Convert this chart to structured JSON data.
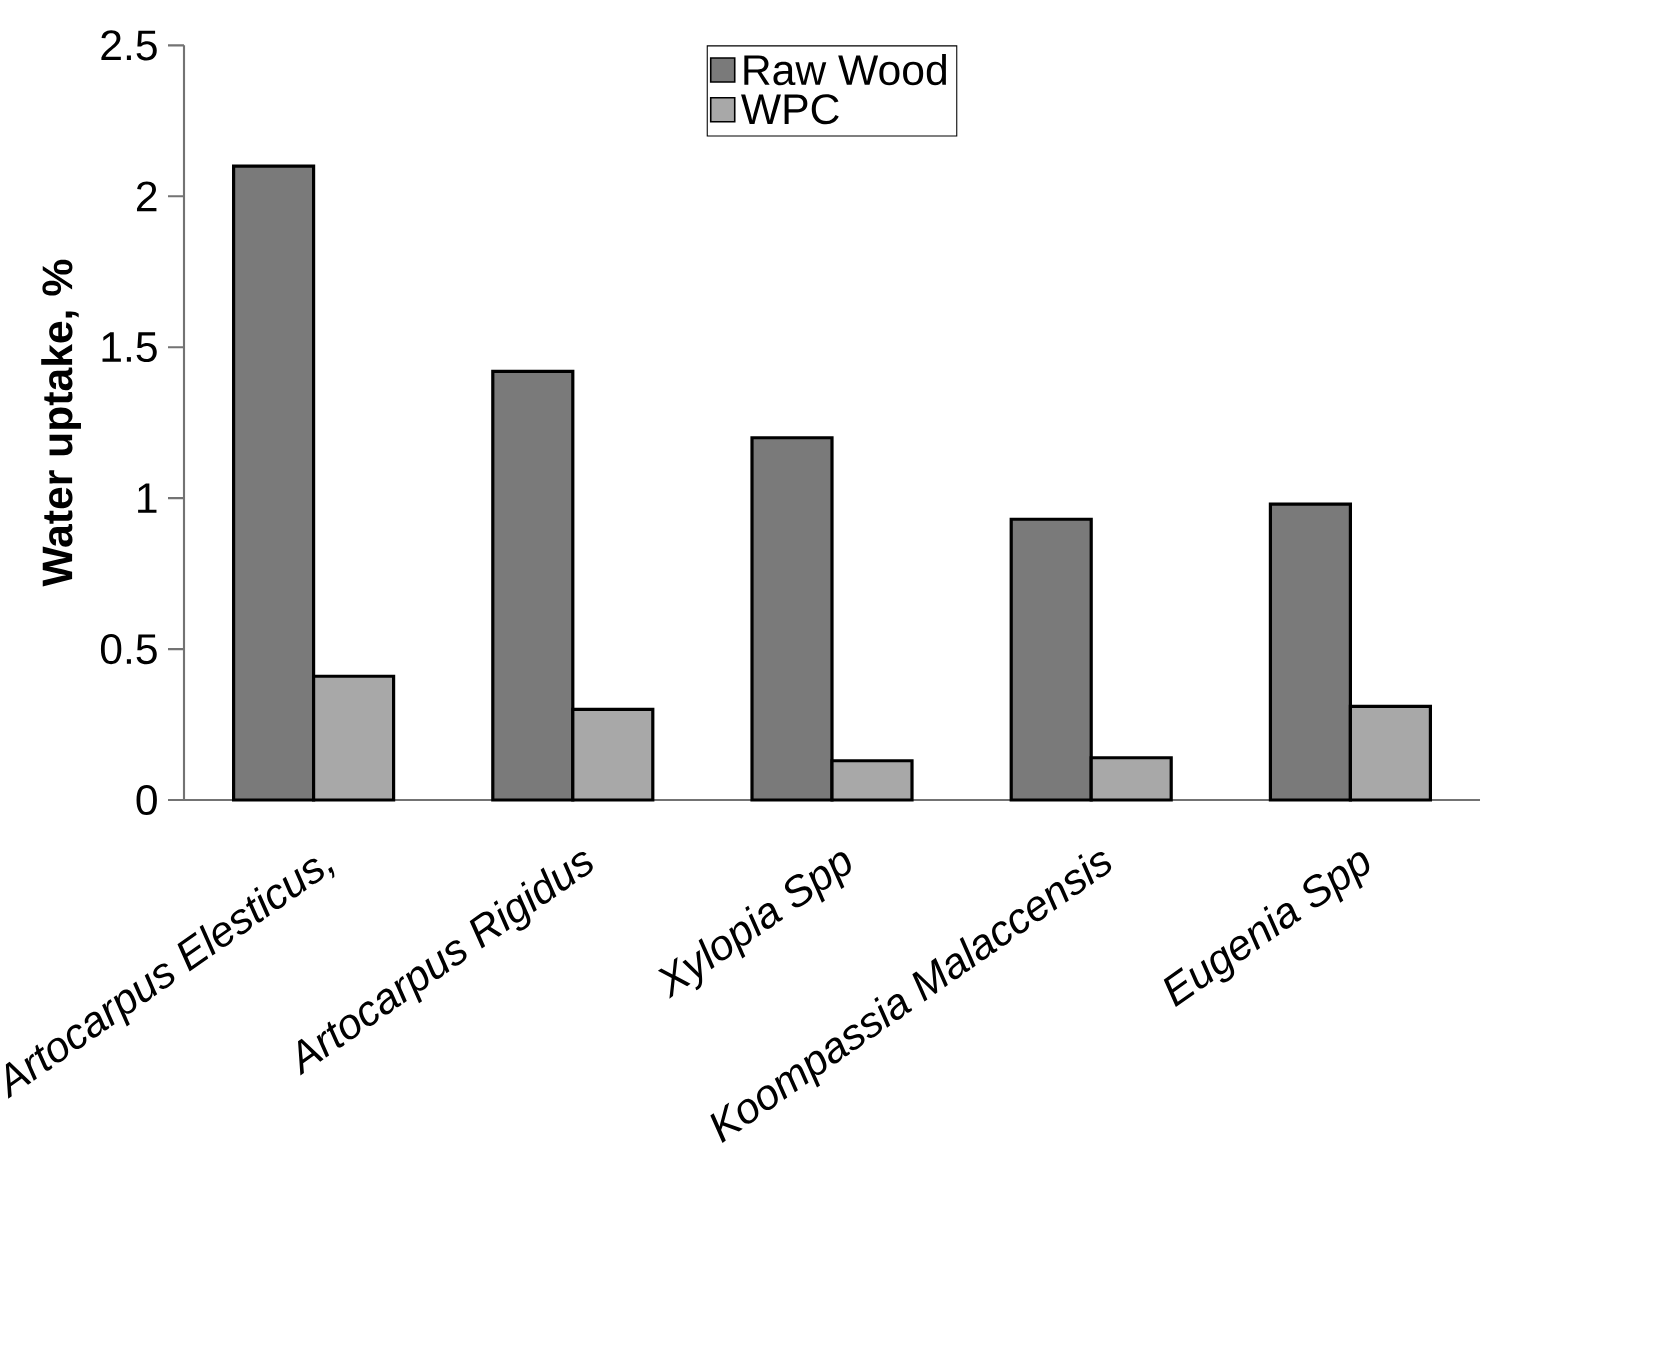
{
  "chart_data": {
    "type": "bar",
    "ylabel": "Water uptake, %",
    "categories": [
      "*Artocarpus Elesticus,*",
      "*Artocarpus Rigidus*",
      "*Xylopia Spp*",
      "*Koompassia Malaccensis*",
      "*Eugenia Spp*"
    ],
    "series": [
      {
        "name": "Raw Wood",
        "color": "#7a7a7a",
        "values": [
          2.1,
          1.42,
          1.2,
          0.93,
          0.98
        ]
      },
      {
        "name": "WPC",
        "color": "#a8a8a8",
        "values": [
          0.41,
          0.3,
          0.13,
          0.14,
          0.31
        ]
      }
    ],
    "ylim": [
      0,
      2.5
    ],
    "yticks": [
      0,
      0.5,
      1,
      1.5,
      2,
      2.5
    ],
    "legend": "top",
    "grid": false
  }
}
